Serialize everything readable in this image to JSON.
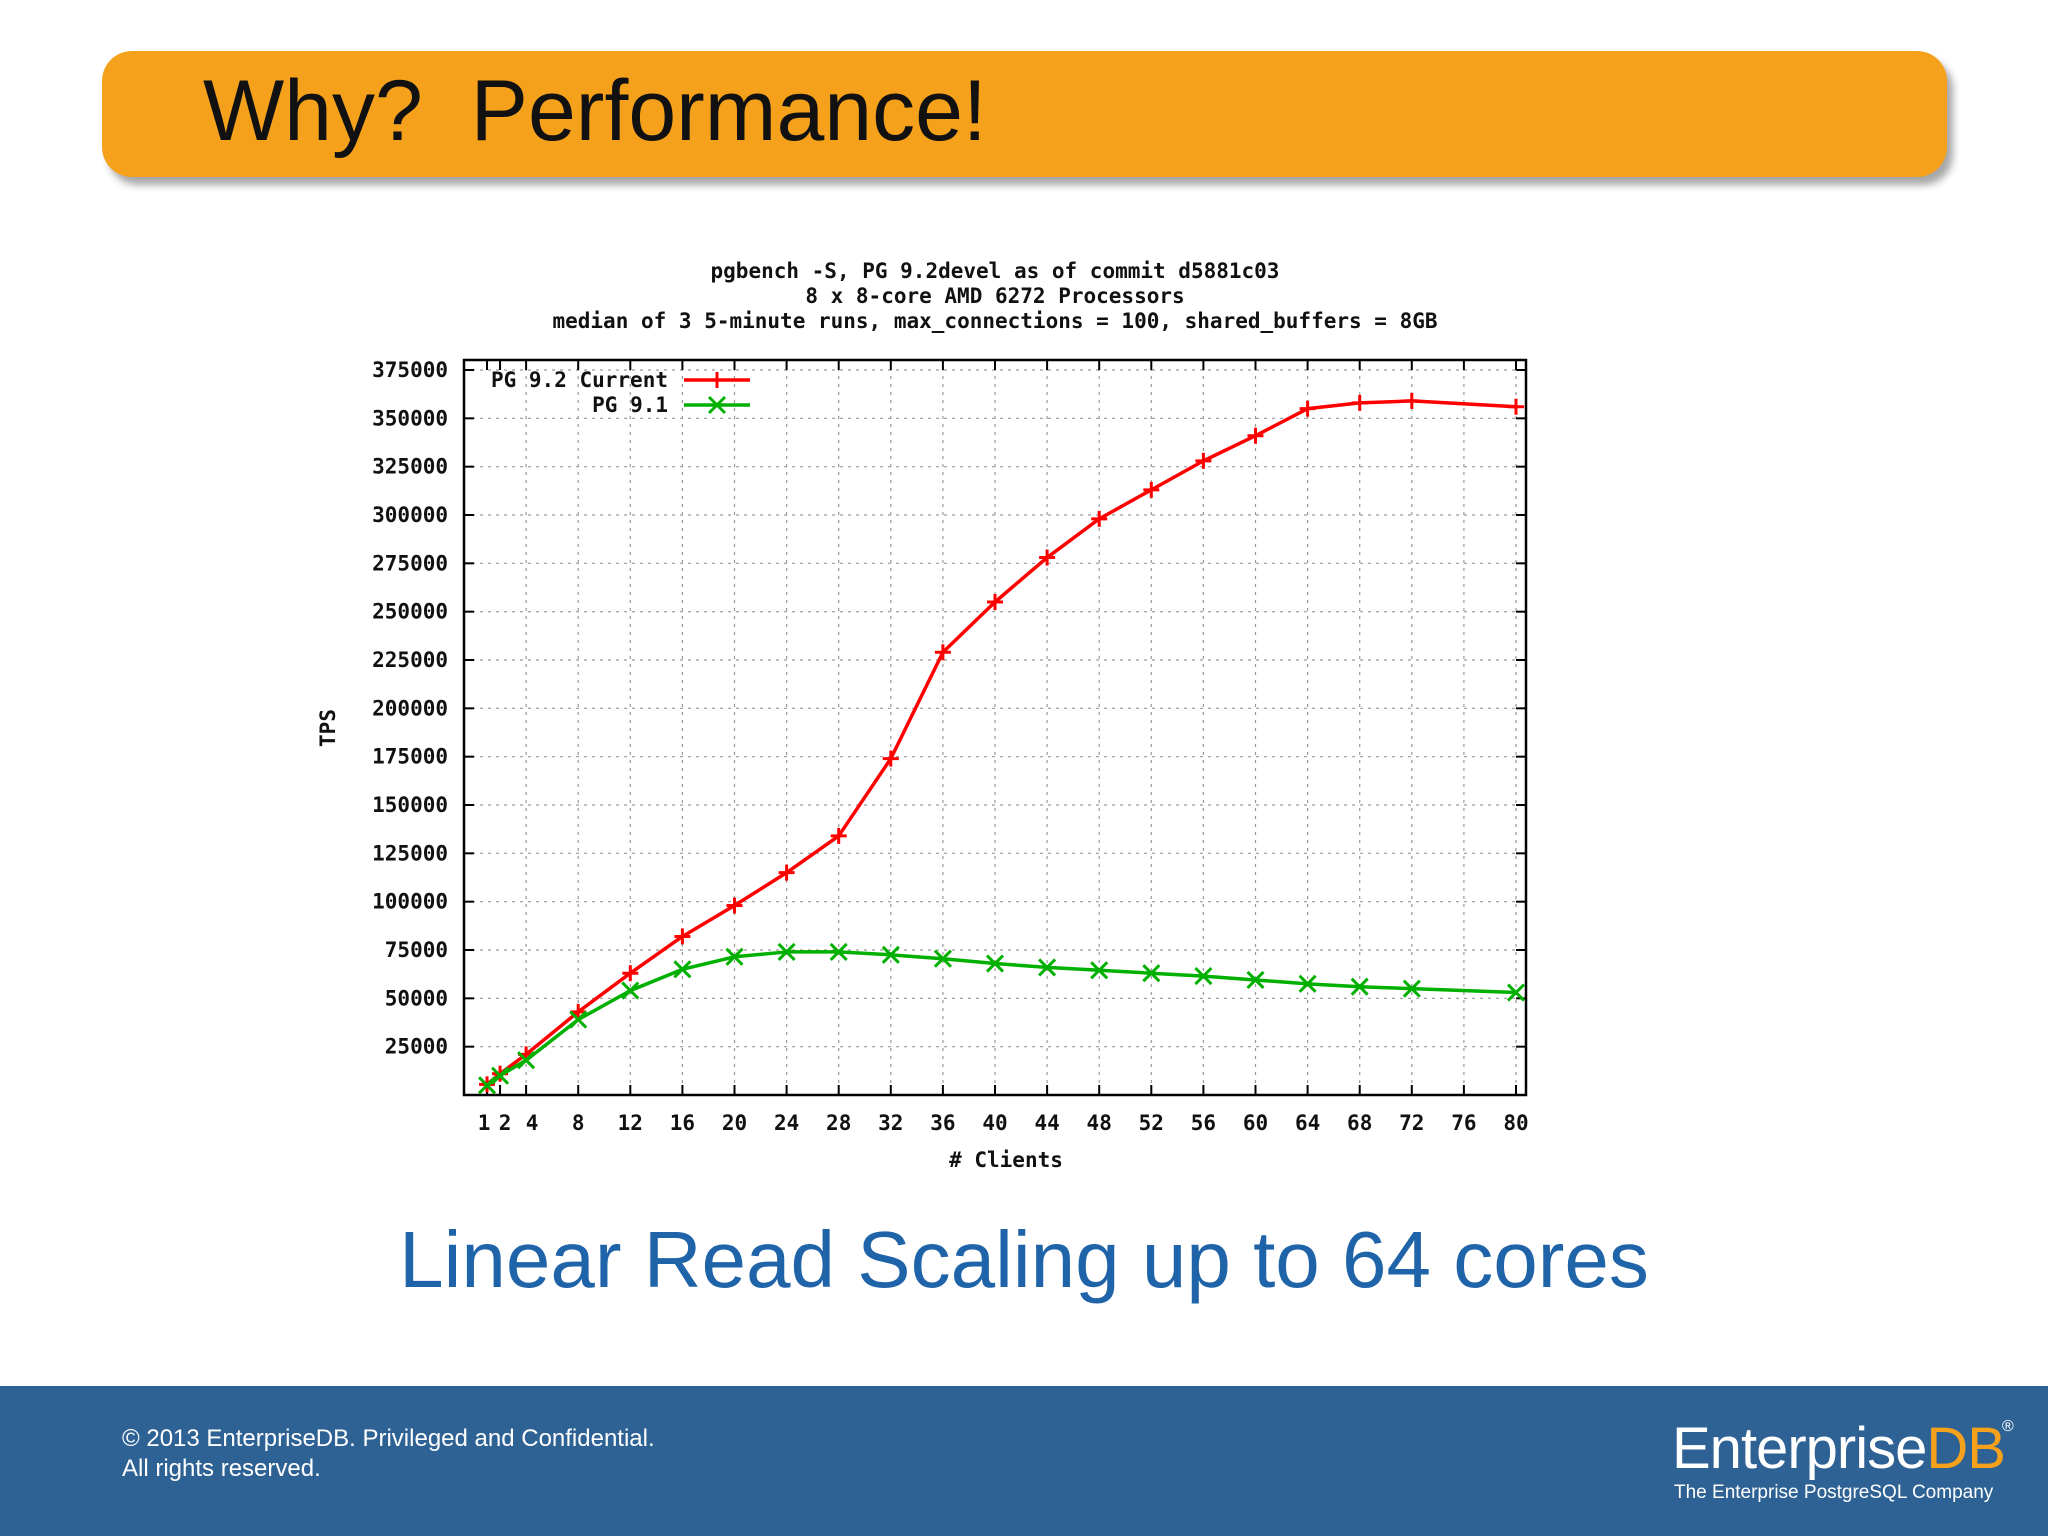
{
  "slide": {
    "title": "Why?  Performance!",
    "subtitle": "Linear Read Scaling up to 64 cores"
  },
  "footer": {
    "copyright_line1": "© 2013 EnterpriseDB. Privileged and Confidential.",
    "copyright_line2": "All rights reserved.",
    "logo_main": "Enterprise",
    "logo_accent": "DB",
    "logo_reg": "®",
    "logo_tagline": "The Enterprise PostgreSQL Company"
  },
  "colors": {
    "title_bar": "#f5a11c",
    "subtitle": "#1f63a8",
    "footer": "#2f6294",
    "series_current": "#ff0000",
    "series_91": "#00b000"
  },
  "chart_data": {
    "type": "line",
    "title_lines": [
      "pgbench -S, PG 9.2devel as of commit d5881c03",
      "8 x 8-core AMD 6272 Processors",
      "median of 3 5-minute runs, max_connections = 100, shared_buffers = 8GB"
    ],
    "xlabel": "# Clients",
    "ylabel": "TPS",
    "xlim": [
      0,
      80
    ],
    "ylim": [
      0,
      375000
    ],
    "x_tick_labels": [
      "1",
      "2",
      "4",
      "8",
      "12",
      "16",
      "20",
      "24",
      "28",
      "32",
      "36",
      "40",
      "44",
      "48",
      "52",
      "56",
      "60",
      "64",
      "68",
      "72",
      "76",
      "80"
    ],
    "y_ticks": [
      25000,
      50000,
      75000,
      100000,
      125000,
      150000,
      175000,
      200000,
      225000,
      250000,
      275000,
      300000,
      325000,
      350000,
      375000
    ],
    "y_tick_labels": [
      "25000",
      "50000",
      "75000",
      "100000",
      "125000",
      "150000",
      "175000",
      "200000",
      "225000",
      "250000",
      "275000",
      "300000",
      "325000",
      "350000",
      "375000"
    ],
    "grid": true,
    "legend_position": "top-left",
    "x": [
      1,
      2,
      4,
      8,
      12,
      16,
      20,
      24,
      28,
      32,
      36,
      40,
      44,
      48,
      52,
      56,
      60,
      64,
      68,
      72,
      80
    ],
    "series": [
      {
        "name": "PG 9.2 Current",
        "marker": "plus",
        "values": [
          5500,
          11000,
          21000,
          43000,
          63000,
          82000,
          98000,
          115000,
          134000,
          174000,
          229000,
          255000,
          278000,
          298000,
          313000,
          328000,
          341000,
          355000,
          358000,
          359000,
          356000
        ]
      },
      {
        "name": "PG 9.1",
        "marker": "cross",
        "values": [
          5000,
          10000,
          18000,
          39000,
          54000,
          65000,
          71500,
          74000,
          74000,
          72500,
          70500,
          68000,
          66000,
          64500,
          63000,
          61500,
          59500,
          57500,
          56000,
          55000,
          53000
        ]
      }
    ]
  }
}
